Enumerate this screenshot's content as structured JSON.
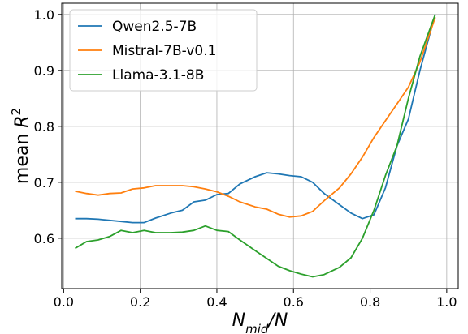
{
  "chart_data": {
    "type": "line",
    "title": "",
    "xlabel": {
      "main": "N",
      "sub": "mid",
      "rest": "/N"
    },
    "ylabel": {
      "text": "mean ",
      "var": "R",
      "sup": "2"
    },
    "xlim": [
      -0.005,
      1.03
    ],
    "ylim": [
      0.51,
      1.02
    ],
    "x_ticks": [
      0.0,
      0.2,
      0.4,
      0.6,
      0.8,
      1.0
    ],
    "x_tick_labels": [
      "0.0",
      "0.2",
      "0.4",
      "0.6",
      "0.8",
      "1.0"
    ],
    "y_ticks": [
      0.6,
      0.7,
      0.8,
      0.9,
      1.0
    ],
    "y_tick_labels": [
      "0.6",
      "0.7",
      "0.8",
      "0.9",
      "1.0"
    ],
    "grid": true,
    "legend_position": "top-left",
    "x": [
      0.03,
      0.06,
      0.09,
      0.12,
      0.15,
      0.18,
      0.21,
      0.24,
      0.28,
      0.31,
      0.34,
      0.37,
      0.4,
      0.43,
      0.46,
      0.5,
      0.53,
      0.56,
      0.59,
      0.62,
      0.65,
      0.68,
      0.72,
      0.75,
      0.78,
      0.81,
      0.84,
      0.87,
      0.9,
      0.93,
      0.97
    ],
    "series": [
      {
        "name": "Qwen2.5-7B",
        "color": "#1f77b4",
        "values": [
          0.635,
          0.635,
          0.634,
          0.632,
          0.63,
          0.628,
          0.628,
          0.636,
          0.645,
          0.65,
          0.665,
          0.668,
          0.678,
          0.68,
          0.697,
          0.71,
          0.717,
          0.715,
          0.712,
          0.71,
          0.7,
          0.68,
          0.66,
          0.645,
          0.635,
          0.642,
          0.69,
          0.765,
          0.813,
          0.9,
          1.0
        ]
      },
      {
        "name": "Mistral-7B-v0.1",
        "color": "#ff7f0e",
        "values": [
          0.684,
          0.68,
          0.677,
          0.68,
          0.681,
          0.688,
          0.69,
          0.694,
          0.694,
          0.694,
          0.692,
          0.688,
          0.683,
          0.675,
          0.665,
          0.656,
          0.652,
          0.643,
          0.638,
          0.64,
          0.648,
          0.667,
          0.69,
          0.715,
          0.745,
          0.78,
          0.81,
          0.84,
          0.87,
          0.915,
          0.995
        ]
      },
      {
        "name": "Llama-3.1-8B",
        "color": "#2ca02c",
        "values": [
          0.582,
          0.594,
          0.597,
          0.603,
          0.614,
          0.61,
          0.614,
          0.61,
          0.61,
          0.611,
          0.614,
          0.622,
          0.614,
          0.612,
          0.597,
          0.578,
          0.564,
          0.55,
          0.542,
          0.536,
          0.531,
          0.535,
          0.548,
          0.565,
          0.6,
          0.65,
          0.712,
          0.765,
          0.85,
          0.925,
          1.0
        ]
      }
    ]
  }
}
